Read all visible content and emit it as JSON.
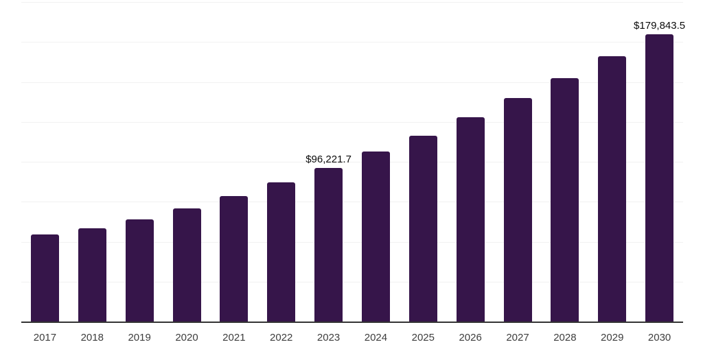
{
  "chart_data": {
    "type": "bar",
    "title": "",
    "xlabel": "",
    "ylabel": "",
    "categories": [
      "2017",
      "2018",
      "2019",
      "2020",
      "2021",
      "2022",
      "2023",
      "2024",
      "2025",
      "2026",
      "2027",
      "2028",
      "2029",
      "2030"
    ],
    "values": [
      54500,
      58500,
      64000,
      71000,
      78500,
      87000,
      96221.7,
      106500,
      116500,
      128000,
      140000,
      152500,
      166000,
      179843.5
    ],
    "data_labels": [
      "",
      "",
      "",
      "",
      "",
      "",
      "$96,221.7",
      "",
      "",
      "",
      "",
      "",
      "",
      "$179,843.5"
    ],
    "ylim": [
      0,
      200000
    ],
    "gridline_step": 25000,
    "grid": true,
    "legend_position": "none",
    "bar_color": "#36154a",
    "gridline_color": "#f1f1f1",
    "axis_line_color": "#333333",
    "tick_label_color": "#3d3d3d",
    "data_label_color": "#0a0a0a"
  }
}
